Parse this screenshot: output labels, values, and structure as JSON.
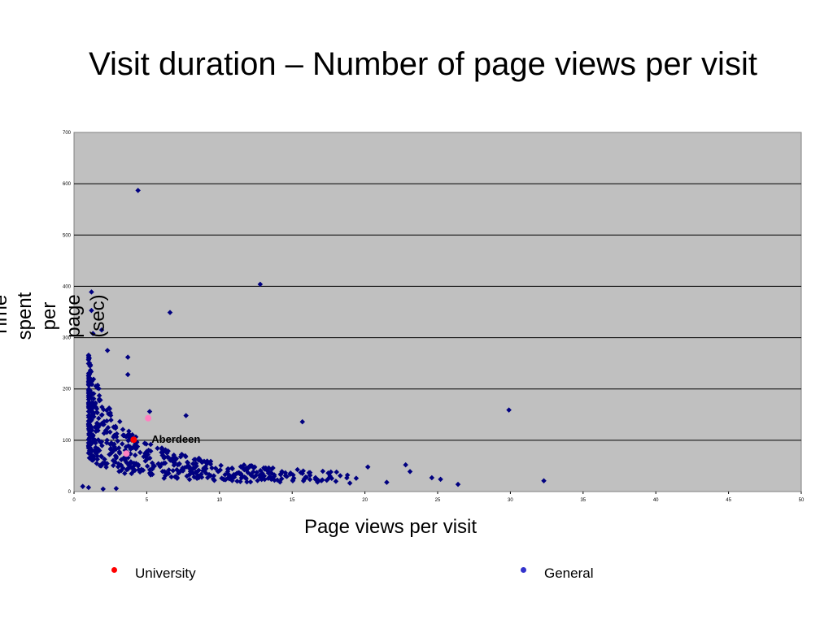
{
  "title": "Visit duration – Number of page views per visit",
  "chart_data": {
    "type": "scatter",
    "title": "Visit duration – Number of page views per visit",
    "xlabel": "Page views per visit",
    "ylabel": "Time spent per page (sec)",
    "xlim": [
      0,
      50
    ],
    "ylim": [
      0,
      700
    ],
    "xticks": [
      0,
      5,
      10,
      15,
      20,
      25,
      30,
      35,
      40,
      45,
      50
    ],
    "yticks": [
      0,
      100,
      200,
      300,
      400,
      500,
      600,
      700
    ],
    "grid": "horizontal",
    "plot_background": "#c0c0c0",
    "marker_color": "#000080",
    "annotation": {
      "text": "Aberdeen",
      "x": 4.1,
      "y": 101
    },
    "highlight_points": [
      {
        "x": 4.1,
        "y": 101,
        "color": "#ff0000"
      },
      {
        "x": 5.1,
        "y": 143,
        "color": "#ff80c0"
      },
      {
        "x": 3.6,
        "y": 74,
        "color": "#ff80c0"
      }
    ],
    "outliers": [
      [
        4.4,
        587
      ],
      [
        12.8,
        404
      ],
      [
        6.6,
        349
      ],
      [
        1.2,
        389
      ],
      [
        1.2,
        353
      ],
      [
        29.9,
        159
      ],
      [
        32.3,
        21
      ],
      [
        26.4,
        14
      ],
      [
        25.2,
        24
      ],
      [
        24.6,
        27
      ],
      [
        22.8,
        52
      ],
      [
        23.1,
        39
      ],
      [
        20.2,
        48
      ],
      [
        19.4,
        26
      ],
      [
        15.7,
        136
      ],
      [
        7.7,
        148
      ],
      [
        5.2,
        156
      ],
      [
        3.7,
        262
      ],
      [
        1.9,
        315
      ],
      [
        1.3,
        308
      ],
      [
        2.3,
        275
      ],
      [
        3.7,
        228
      ],
      [
        1.0,
        75
      ],
      [
        0.6,
        10
      ],
      [
        1.0,
        8
      ],
      [
        2.0,
        5
      ],
      [
        2.9,
        6
      ],
      [
        17.6,
        30
      ],
      [
        18.8,
        32
      ],
      [
        21.5,
        18
      ],
      [
        16.6,
        24
      ],
      [
        14.2,
        33
      ],
      [
        13.6,
        44
      ],
      [
        11.8,
        27
      ],
      [
        9.4,
        31
      ]
    ],
    "cluster_seed": 7,
    "cluster_count": 600,
    "legend": [
      {
        "label": "University",
        "color": "#ff0000"
      },
      {
        "label": "General",
        "color": "#3333cc"
      }
    ],
    "legend_position": "bottom"
  }
}
